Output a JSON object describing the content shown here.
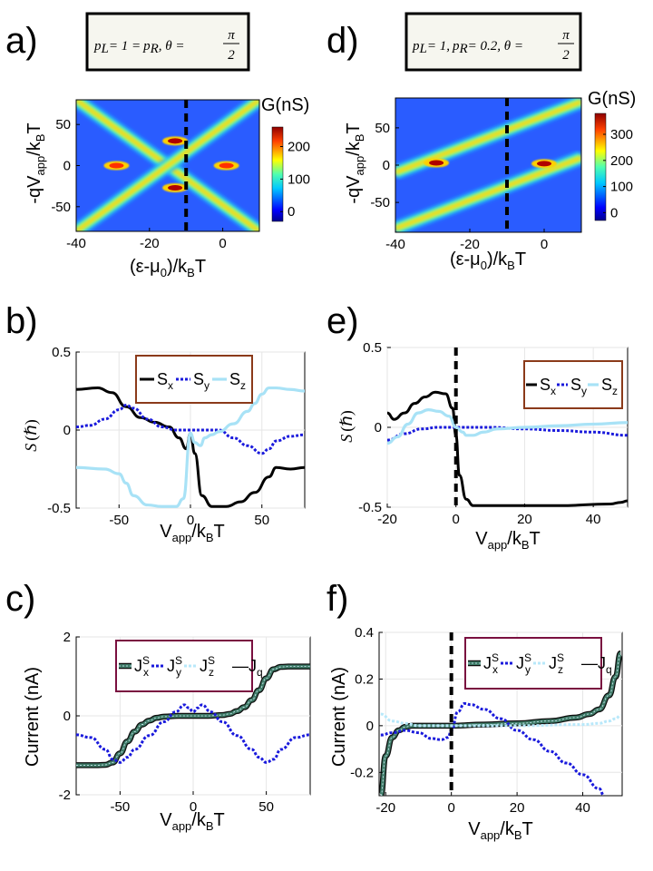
{
  "panel_labels": {
    "a": "a)",
    "b": "b)",
    "c": "c)",
    "d": "d)",
    "e": "e)",
    "f": "f)"
  },
  "chart_data": [
    {
      "id": "a",
      "type": "heatmap",
      "annotation": {
        "p_l": "p",
        "l_sub": "L",
        "eq1": "= 1 =",
        "p_r": "p",
        "r_sub": "R",
        "theta": ", θ =",
        "pi": "π",
        "two": "2"
      },
      "xlabel_parts": [
        "(ε-μ",
        "0",
        ")/k",
        "B",
        "T"
      ],
      "ylabel_parts": [
        "-qV",
        "app",
        "/k",
        "B",
        "T"
      ],
      "xlim": [
        -40,
        10
      ],
      "ylim": [
        -80,
        80
      ],
      "xticks": [
        -40,
        -20,
        0
      ],
      "yticks": [
        50,
        0,
        -50
      ],
      "colorbar": {
        "title": "G(nS)",
        "ticks": [
          200,
          100,
          0
        ],
        "range": [
          -30,
          260
        ]
      },
      "marker_x": -10,
      "features": [
        {
          "kind": "diagonal",
          "x0": -40,
          "y0": 80,
          "x1": 10,
          "y1": -80
        },
        {
          "kind": "diagonal",
          "x0": -40,
          "y0": -80,
          "x1": 10,
          "y1": 80
        }
      ],
      "peaks": [
        {
          "x": -13,
          "y": 30,
          "G": 250
        },
        {
          "x": -13,
          "y": -27,
          "G": 250
        },
        {
          "x": -29,
          "y": 0,
          "G": 200
        },
        {
          "x": 1,
          "y": 0,
          "G": 200
        }
      ]
    },
    {
      "id": "d",
      "type": "heatmap",
      "annotation": {
        "p_l": "p",
        "l_sub": "L",
        "eq1": "= 1,",
        "p_r": "p",
        "r_sub": "R",
        "eq2": "= 0.2, θ =",
        "pi": "π",
        "two": "2"
      },
      "xlabel_parts": [
        "(ε-μ",
        "0",
        ")/k",
        "B",
        "T"
      ],
      "ylabel_parts": [
        "-qV",
        "app",
        "/k",
        "B",
        "T"
      ],
      "xlim": [
        -40,
        10
      ],
      "ylim": [
        -90,
        90
      ],
      "xticks": [
        -40,
        -20,
        0
      ],
      "yticks": [
        50,
        0,
        -50
      ],
      "colorbar": {
        "title": "G(nS)",
        "ticks": [
          300,
          200,
          100,
          0
        ],
        "range": [
          -30,
          380
        ]
      },
      "marker_x": -10,
      "features": [
        {
          "kind": "diagonal",
          "x0": -40,
          "y0": -10,
          "x1": 10,
          "y1": 85
        },
        {
          "kind": "diagonal",
          "x0": -40,
          "y0": -85,
          "x1": 10,
          "y1": 10
        }
      ],
      "peaks": [
        {
          "x": -29,
          "y": 3,
          "G": 350
        },
        {
          "x": 0,
          "y": 2,
          "G": 330
        }
      ]
    },
    {
      "id": "b",
      "type": "line",
      "xlabel_parts": [
        "V",
        "app",
        "/k",
        "B",
        "T"
      ],
      "ylabel_parts": [
        "S",
        "(ℏ)"
      ],
      "xlim": [
        -80,
        80
      ],
      "ylim": [
        -0.5,
        0.5
      ],
      "xticks": [
        -50,
        0,
        50
      ],
      "yticks": [
        0.5,
        0,
        -0.5
      ],
      "ytick_labels": [
        "0.5",
        "0",
        "-0.5"
      ],
      "legend": [
        {
          "name": "S",
          "sub": "x"
        },
        {
          "name": "S",
          "sub": "y"
        },
        {
          "name": "S",
          "sub": "z"
        }
      ],
      "series": [
        {
          "name": "Sx",
          "style": "black",
          "x": [
            -80,
            -65,
            -55,
            -45,
            -35,
            -25,
            -15,
            -8,
            -3,
            0,
            3,
            8,
            15,
            25,
            35,
            45,
            55,
            60,
            70,
            80
          ],
          "y": [
            0.26,
            0.27,
            0.24,
            0.15,
            0.08,
            0.05,
            0.02,
            -0.05,
            -0.12,
            -0.02,
            -0.15,
            -0.42,
            -0.49,
            -0.49,
            -0.46,
            -0.4,
            -0.3,
            -0.24,
            -0.25,
            -0.24
          ]
        },
        {
          "name": "Sy",
          "style": "bluedot",
          "x": [
            -80,
            -70,
            -60,
            -50,
            -45,
            -40,
            -30,
            -20,
            -10,
            0,
            10,
            20,
            30,
            40,
            50,
            55,
            60,
            70,
            80
          ],
          "y": [
            0.02,
            0.03,
            0.07,
            0.13,
            0.16,
            0.14,
            0.07,
            0.02,
            0.0,
            0.0,
            0.0,
            0.0,
            -0.05,
            -0.1,
            -0.15,
            -0.12,
            -0.07,
            -0.04,
            -0.03
          ]
        },
        {
          "name": "Sz",
          "style": "lightblue",
          "x": [
            -80,
            -60,
            -50,
            -45,
            -40,
            -30,
            -20,
            -10,
            -5,
            0,
            3,
            7,
            10,
            15,
            20,
            30,
            40,
            45,
            50,
            55,
            60,
            70,
            80
          ],
          "y": [
            -0.24,
            -0.25,
            -0.28,
            -0.34,
            -0.42,
            -0.48,
            -0.49,
            -0.49,
            -0.44,
            -0.02,
            -0.08,
            -0.1,
            -0.05,
            -0.03,
            -0.01,
            0.04,
            0.12,
            0.17,
            0.23,
            0.27,
            0.27,
            0.26,
            0.25
          ]
        }
      ]
    },
    {
      "id": "e",
      "type": "line",
      "xlabel_parts": [
        "V",
        "app",
        "/k",
        "B",
        "T"
      ],
      "ylabel_parts": [
        "S",
        "(ℏ)"
      ],
      "xlim": [
        -20,
        50
      ],
      "ylim": [
        -0.5,
        0.5
      ],
      "xticks": [
        -20,
        0,
        20,
        40
      ],
      "yticks": [
        0.5,
        0,
        -0.5
      ],
      "ytick_labels": [
        "0.5",
        "0",
        "-0.5"
      ],
      "marker_x": 0,
      "legend": [
        {
          "name": "S",
          "sub": "x"
        },
        {
          "name": "S",
          "sub": "y"
        },
        {
          "name": "S",
          "sub": "z"
        }
      ],
      "series": [
        {
          "name": "Sx",
          "style": "black",
          "x": [
            -20,
            -18,
            -15,
            -12,
            -9,
            -6,
            -3,
            -1,
            0,
            1,
            3,
            5,
            8,
            15,
            30,
            45,
            48,
            50
          ],
          "y": [
            0.09,
            0.05,
            0.09,
            0.15,
            0.19,
            0.22,
            0.21,
            0.12,
            -0.05,
            -0.3,
            -0.45,
            -0.49,
            -0.49,
            -0.49,
            -0.49,
            -0.48,
            -0.47,
            -0.46
          ]
        },
        {
          "name": "Sy",
          "style": "bluedot",
          "x": [
            -20,
            -15,
            -10,
            -5,
            0,
            10,
            20,
            30,
            40,
            50
          ],
          "y": [
            -0.08,
            -0.04,
            -0.01,
            0.0,
            0.0,
            0.0,
            -0.01,
            -0.02,
            -0.03,
            -0.05
          ]
        },
        {
          "name": "Sz",
          "style": "lightblue",
          "x": [
            -20,
            -17,
            -14,
            -11,
            -8,
            -5,
            -2,
            0,
            2,
            3,
            5,
            8,
            12,
            20,
            30,
            40,
            50
          ],
          "y": [
            -0.1,
            -0.06,
            0.02,
            0.09,
            0.11,
            0.1,
            0.07,
            0.0,
            -0.03,
            -0.05,
            -0.05,
            -0.03,
            -0.01,
            0.0,
            0.01,
            0.02,
            0.03
          ]
        }
      ]
    },
    {
      "id": "c",
      "type": "line",
      "xlabel_parts": [
        "V",
        "app",
        "/k",
        "B",
        "T"
      ],
      "ylabel": "Current (nA)",
      "xlim": [
        -80,
        80
      ],
      "ylim": [
        -2,
        2
      ],
      "xticks": [
        -50,
        0,
        50
      ],
      "yticks": [
        2,
        0,
        -2
      ],
      "ytick_labels": [
        "2",
        "0",
        "-2"
      ],
      "legend": [
        {
          "name": "J",
          "sup": "S",
          "sub": "x"
        },
        {
          "name": "J",
          "sup": "S",
          "sub": "y"
        },
        {
          "name": "J",
          "sup": "S",
          "sub": "z"
        },
        {
          "name": "—J",
          "sub": "q"
        }
      ],
      "series": [
        {
          "name": "Jx",
          "style": "green",
          "x": [
            -80,
            -65,
            -60,
            -55,
            -50,
            -45,
            -40,
            -35,
            -30,
            -25,
            -20,
            -10,
            0,
            10,
            20,
            25,
            30,
            35,
            40,
            45,
            50,
            55,
            60,
            65,
            70,
            80
          ],
          "y": [
            -1.25,
            -1.25,
            -1.24,
            -1.18,
            -0.95,
            -0.65,
            -0.4,
            -0.22,
            -0.12,
            -0.05,
            -0.02,
            0.0,
            0.0,
            0.0,
            0.02,
            0.05,
            0.12,
            0.22,
            0.4,
            0.65,
            0.95,
            1.18,
            1.24,
            1.25,
            1.25,
            1.25
          ]
        },
        {
          "name": "Jy",
          "style": "bluedot",
          "x": [
            -80,
            -70,
            -60,
            -55,
            -50,
            -45,
            -40,
            -30,
            -20,
            -12,
            -6,
            -3,
            0,
            3,
            6,
            12,
            20,
            30,
            40,
            45,
            50,
            55,
            60,
            70,
            80
          ],
          "y": [
            -0.48,
            -0.55,
            -0.85,
            -1.1,
            -1.18,
            -1.05,
            -0.85,
            -0.5,
            -0.15,
            0.1,
            0.28,
            0.2,
            0.1,
            0.2,
            0.28,
            0.1,
            -0.15,
            -0.5,
            -0.85,
            -1.05,
            -1.18,
            -1.1,
            -0.85,
            -0.55,
            -0.48
          ]
        }
      ]
    },
    {
      "id": "f",
      "type": "line",
      "xlabel_parts": [
        "V",
        "app",
        "/k",
        "B",
        "T"
      ],
      "ylabel": "Current (nA)",
      "xlim": [
        -22,
        52
      ],
      "ylim": [
        -0.3,
        0.4
      ],
      "xticks": [
        -20,
        0,
        20,
        40
      ],
      "yticks": [
        0.4,
        0.2,
        0,
        -0.2
      ],
      "ytick_labels": [
        "0.4",
        "0.2",
        "0",
        "-0.2"
      ],
      "marker_x": 0,
      "legend": [
        {
          "name": "J",
          "sup": "S",
          "sub": "x"
        },
        {
          "name": "J",
          "sup": "S",
          "sub": "y"
        },
        {
          "name": "J",
          "sup": "S",
          "sub": "z"
        },
        {
          "name": "—J",
          "sub": "q"
        }
      ],
      "series": [
        {
          "name": "Jx",
          "style": "green",
          "x": [
            -21.5,
            -20,
            -18,
            -16,
            -14,
            -12,
            -10,
            -5,
            0,
            10,
            20,
            30,
            38,
            42,
            45,
            48,
            50,
            51.5
          ],
          "y": [
            -0.3,
            -0.13,
            -0.05,
            -0.02,
            -0.005,
            0.0,
            0.0,
            0.0,
            0.0,
            0.005,
            0.01,
            0.02,
            0.035,
            0.05,
            0.07,
            0.13,
            0.21,
            0.31
          ]
        },
        {
          "name": "Jy",
          "style": "bluedot",
          "x": [
            -21.5,
            -18,
            -14,
            -10,
            -6,
            -3,
            -1,
            0,
            2,
            4,
            6,
            10,
            15,
            20,
            25,
            30,
            35,
            40,
            45,
            46.5
          ],
          "y": [
            -0.04,
            -0.03,
            -0.02,
            -0.03,
            -0.055,
            -0.06,
            -0.05,
            -0.02,
            0.06,
            0.095,
            0.09,
            0.07,
            0.03,
            -0.02,
            -0.06,
            -0.11,
            -0.16,
            -0.21,
            -0.27,
            -0.3
          ]
        },
        {
          "name": "Jz",
          "style": "lightdot",
          "x": [
            -21.5,
            -18,
            -14,
            -10,
            0,
            20,
            40,
            45,
            48,
            50,
            51.5
          ],
          "y": [
            0.05,
            0.02,
            0.01,
            0.0,
            0.0,
            0.0,
            0.005,
            0.01,
            0.02,
            0.03,
            0.045
          ]
        }
      ]
    }
  ]
}
